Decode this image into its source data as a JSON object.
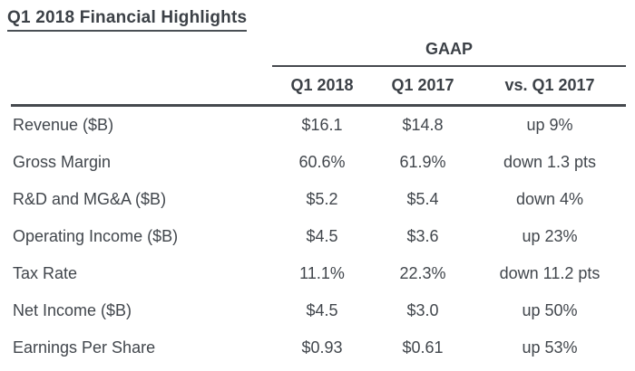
{
  "page": {
    "title": "Q1 2018 Financial Highlights"
  },
  "table": {
    "group_header": "GAAP",
    "columns": [
      "Q1 2018",
      "Q1 2017",
      "vs. Q1 2017"
    ],
    "rows": [
      {
        "label": "Revenue ($B)",
        "q1_2018": "$16.1",
        "q1_2017": "$14.8",
        "vs": "up 9%"
      },
      {
        "label": "Gross Margin",
        "q1_2018": "60.6%",
        "q1_2017": "61.9%",
        "vs": "down 1.3 pts"
      },
      {
        "label": "R&D and MG&A ($B)",
        "q1_2018": "$5.2",
        "q1_2017": "$5.4",
        "vs": "down 4%"
      },
      {
        "label": "Operating Income ($B)",
        "q1_2018": "$4.5",
        "q1_2017": "$3.6",
        "vs": "up 23%"
      },
      {
        "label": "Tax Rate",
        "q1_2018": "11.1%",
        "q1_2017": "22.3%",
        "vs": "down 11.2 pts"
      },
      {
        "label": "Net Income ($B)",
        "q1_2018": "$4.5",
        "q1_2017": "$3.0",
        "vs": "up 50%"
      },
      {
        "label": "Earnings Per Share",
        "q1_2018": "$0.93",
        "q1_2017": "$0.61",
        "vs": "up 53%"
      }
    ]
  },
  "colors": {
    "text": "#41464c",
    "heading_text": "#3c4147",
    "rule": "#45494e",
    "background": "#ffffff"
  }
}
